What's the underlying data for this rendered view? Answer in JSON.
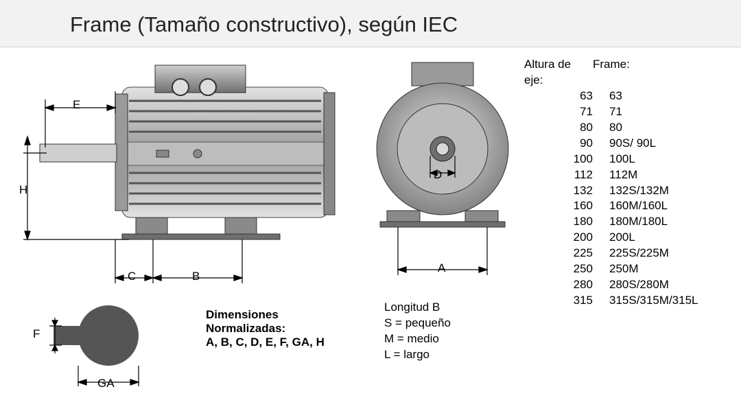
{
  "title": "Frame (Tamaño constructivo), según IEC",
  "dimension_labels": {
    "E": "E",
    "H": "H",
    "C": "C",
    "B": "B",
    "D": "D",
    "A": "A",
    "F": "F",
    "GA": "GA"
  },
  "dimensions_heading": "Dimensiones",
  "dimensions_sub": "Normalizadas:",
  "dimensions_list": "A, B, C, D, E, F, GA, H",
  "longitud_heading": "Longitud B",
  "longitud_rows": [
    "S  = pequeño",
    "M = medio",
    "L  = largo"
  ],
  "table": {
    "header_left": "Altura de\neje:",
    "header_right": "Frame:",
    "altura": [
      "63",
      "71",
      "80",
      "90",
      "100",
      "112",
      "132",
      "160",
      "180",
      "200",
      "225",
      "250",
      "280",
      "315"
    ],
    "frame": [
      "63",
      "71",
      "80",
      "90S/ 90L",
      "100L",
      "112M",
      "132S/132M",
      "160M/160L",
      "180M/180L",
      "200L",
      "225S/225M",
      "250M",
      "280S/280M",
      "315S/315M/315L"
    ]
  },
  "colors": {
    "titleband_bg": "#f2f2f2",
    "titleband_border": "#d0d0d0",
    "text": "#000000",
    "motor_body": "#b8b8b8",
    "motor_dark": "#6a6a6a",
    "motor_light": "#e4e4e4"
  },
  "diagram": {
    "type": "engineering-dimensioned-views",
    "views": [
      "side",
      "front",
      "shaft_end_detail"
    ],
    "note": "grayscale rendered IEC motor; labeled dimensions E,H,C,B on side view; D,A on front view; F,GA on shaft end detail"
  }
}
